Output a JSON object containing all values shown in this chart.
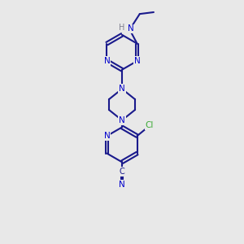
{
  "bg_color": "#e8e8e8",
  "bond_color": "#1a1a8c",
  "bond_width": 1.5,
  "atom_colors": {
    "N": "#0000cc",
    "C": "#1a1a8c",
    "Cl": "#3aaa35",
    "H": "#808090"
  },
  "font_size": 7.5,
  "xlim": [
    0,
    10
  ],
  "ylim": [
    0,
    14
  ]
}
